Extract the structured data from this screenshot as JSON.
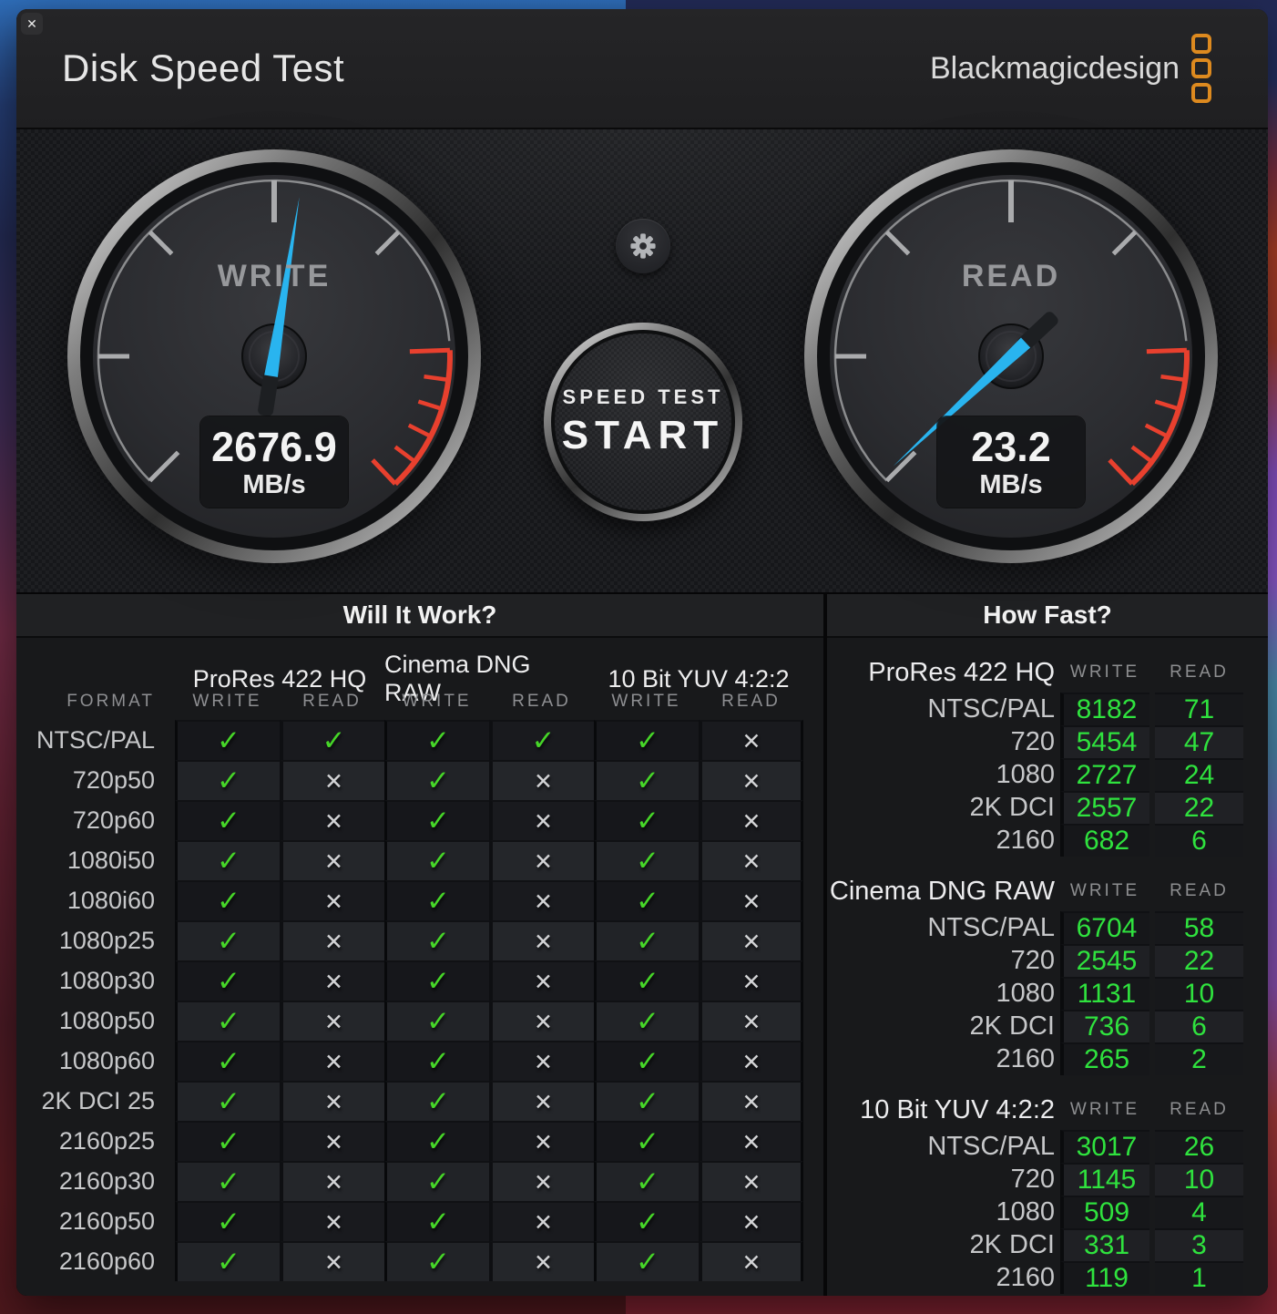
{
  "window": {
    "title": "Disk Speed Test",
    "close_glyph": "✕"
  },
  "brand": {
    "name": "Blackmagicdesign",
    "logo_color": "#dd8a1f"
  },
  "theme": {
    "needle_blue": "#29b4ef",
    "red": "#e8402e",
    "check_green": "#46d628",
    "value_green": "#2fe23e",
    "check_glyph": "✓",
    "cross_glyph": "✕"
  },
  "gauges": {
    "write": {
      "label": "WRITE",
      "value": "2676.9",
      "unit": "MB/s",
      "needle_angle_deg": 9
    },
    "read": {
      "label": "READ",
      "value": "23.2",
      "unit": "MB/s",
      "needle_angle_deg": -133
    }
  },
  "controls": {
    "start_line1": "SPEED TEST",
    "start_line2": "START"
  },
  "will_it_work": {
    "title": "Will It Work?",
    "format_header": "FORMAT",
    "groups": [
      "ProRes 422 HQ",
      "Cinema DNG RAW",
      "10 Bit YUV 4:2:2"
    ],
    "sub_headers": [
      "WRITE",
      "READ"
    ],
    "rows": [
      {
        "format": "NTSC/PAL",
        "results": [
          true,
          true,
          true,
          true,
          true,
          false
        ]
      },
      {
        "format": "720p50",
        "results": [
          true,
          false,
          true,
          false,
          true,
          false
        ]
      },
      {
        "format": "720p60",
        "results": [
          true,
          false,
          true,
          false,
          true,
          false
        ]
      },
      {
        "format": "1080i50",
        "results": [
          true,
          false,
          true,
          false,
          true,
          false
        ]
      },
      {
        "format": "1080i60",
        "results": [
          true,
          false,
          true,
          false,
          true,
          false
        ]
      },
      {
        "format": "1080p25",
        "results": [
          true,
          false,
          true,
          false,
          true,
          false
        ]
      },
      {
        "format": "1080p30",
        "results": [
          true,
          false,
          true,
          false,
          true,
          false
        ]
      },
      {
        "format": "1080p50",
        "results": [
          true,
          false,
          true,
          false,
          true,
          false
        ]
      },
      {
        "format": "1080p60",
        "results": [
          true,
          false,
          true,
          false,
          true,
          false
        ]
      },
      {
        "format": "2K DCI 25",
        "results": [
          true,
          false,
          true,
          false,
          true,
          false
        ]
      },
      {
        "format": "2160p25",
        "results": [
          true,
          false,
          true,
          false,
          true,
          false
        ]
      },
      {
        "format": "2160p30",
        "results": [
          true,
          false,
          true,
          false,
          true,
          false
        ]
      },
      {
        "format": "2160p50",
        "results": [
          true,
          false,
          true,
          false,
          true,
          false
        ]
      },
      {
        "format": "2160p60",
        "results": [
          true,
          false,
          true,
          false,
          true,
          false
        ]
      }
    ]
  },
  "how_fast": {
    "title": "How Fast?",
    "write_header": "WRITE",
    "read_header": "READ",
    "sections": [
      {
        "name": "ProRes 422 HQ",
        "rows": [
          {
            "label": "NTSC/PAL",
            "write": "8182",
            "read": "71"
          },
          {
            "label": "720",
            "write": "5454",
            "read": "47"
          },
          {
            "label": "1080",
            "write": "2727",
            "read": "24"
          },
          {
            "label": "2K DCI",
            "write": "2557",
            "read": "22"
          },
          {
            "label": "2160",
            "write": "682",
            "read": "6"
          }
        ]
      },
      {
        "name": "Cinema DNG RAW",
        "rows": [
          {
            "label": "NTSC/PAL",
            "write": "6704",
            "read": "58"
          },
          {
            "label": "720",
            "write": "2545",
            "read": "22"
          },
          {
            "label": "1080",
            "write": "1131",
            "read": "10"
          },
          {
            "label": "2K DCI",
            "write": "736",
            "read": "6"
          },
          {
            "label": "2160",
            "write": "265",
            "read": "2"
          }
        ]
      },
      {
        "name": "10 Bit YUV 4:2:2",
        "rows": [
          {
            "label": "NTSC/PAL",
            "write": "3017",
            "read": "26"
          },
          {
            "label": "720",
            "write": "1145",
            "read": "10"
          },
          {
            "label": "1080",
            "write": "509",
            "read": "4"
          },
          {
            "label": "2K DCI",
            "write": "331",
            "read": "3"
          },
          {
            "label": "2160",
            "write": "119",
            "read": "1"
          }
        ]
      }
    ]
  }
}
